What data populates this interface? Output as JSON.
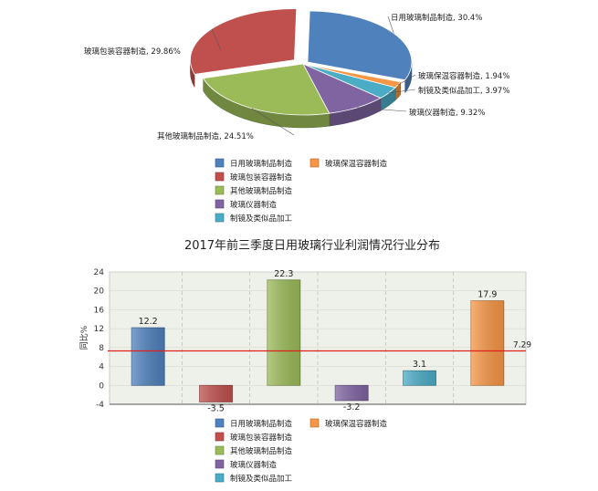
{
  "chart_data": [
    {
      "type": "pie",
      "title": "",
      "categories": [
        "日用玻璃制品制造",
        "玻璃保温容器制造",
        "制镜及类似品加工",
        "玻璃仪器制造",
        "其他玻璃制品制造",
        "玻璃包装容器制造"
      ],
      "values": [
        30.4,
        1.94,
        3.97,
        9.32,
        24.51,
        29.86
      ],
      "slice_labels": [
        "日用玻璃制品制造, 30.4%",
        "玻璃保温容器制造, 1.94%",
        "制镜及类似品加工, 3.97%",
        "玻璃仪器制造, 9.32%",
        "其他玻璃制品制造, 24.51%",
        "玻璃包装容器制造, 29.86%"
      ],
      "colors": [
        "#4f81bd",
        "#f79646",
        "#4bacc6",
        "#8064a2",
        "#9bbb59",
        "#c0504d"
      ],
      "legend": {
        "placement": "bottom",
        "items": [
          {
            "label": "日用玻璃制品制造",
            "color": "#4f81bd"
          },
          {
            "label": "玻璃保温容器制造",
            "color": "#f79646"
          },
          {
            "label": "玻璃包装容器制造",
            "color": "#c0504d"
          },
          {
            "label": "其他玻璃制品制造",
            "color": "#9bbb59"
          },
          {
            "label": "玻璃仪器制造",
            "color": "#8064a2"
          },
          {
            "label": "制镜及类似品加工",
            "color": "#4bacc6"
          }
        ]
      }
    },
    {
      "type": "bar",
      "title": "2017年前三季度日用玻璃行业利润情况行业分布",
      "ylabel": "同比%",
      "xlabel": "",
      "categories": [
        "日用玻璃制品制造",
        "玻璃包装容器制造",
        "其他玻璃制品制造",
        "玻璃仪器制造",
        "制镜及类似品加工",
        "玻璃保温容器制造"
      ],
      "values": [
        12.2,
        -3.5,
        22.3,
        -3.2,
        3.1,
        17.9
      ],
      "value_labels": [
        "12.2",
        "-3.5",
        "22.3",
        "-3.2",
        "3.1",
        "17.9"
      ],
      "colors": [
        "#4f81bd",
        "#c0504d",
        "#9bbb59",
        "#8064a2",
        "#4bacc6",
        "#f79646"
      ],
      "ylim": [
        -4,
        24
      ],
      "yticks": [
        -4,
        0,
        4,
        8,
        12,
        16,
        20,
        24
      ],
      "ytick_labels": [
        "-4",
        "0",
        "4",
        "8",
        "12",
        "16",
        "20",
        "24"
      ],
      "reference_line": {
        "value": 7.29,
        "label": "7.29",
        "color": "#e0201a"
      },
      "grid": true,
      "legend": {
        "placement": "bottom",
        "items": [
          {
            "label": "日用玻璃制品制造",
            "color": "#4f81bd"
          },
          {
            "label": "玻璃保温容器制造",
            "color": "#f79646"
          },
          {
            "label": "玻璃包装容器制造",
            "color": "#c0504d"
          },
          {
            "label": "其他玻璃制品制造",
            "color": "#9bbb59"
          },
          {
            "label": "玻璃仪器制造",
            "color": "#8064a2"
          },
          {
            "label": "制镜及类似品加工",
            "color": "#4bacc6"
          }
        ]
      }
    }
  ]
}
